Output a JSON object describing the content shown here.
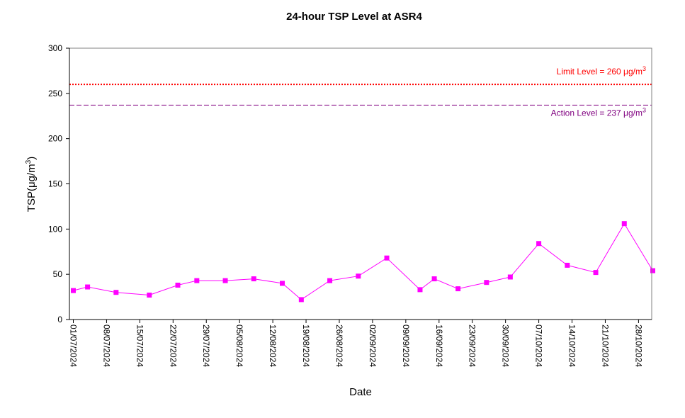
{
  "chart_data": {
    "type": "line",
    "title": "24-hour TSP Level at ASR4",
    "xlabel": "Date",
    "ylabel": {
      "prefix": "TSP(",
      "mu": "μ",
      "unit": "g/m",
      "sup": "3",
      "suffix": ")"
    },
    "ylim": [
      0,
      300
    ],
    "yticks": [
      "0",
      "50",
      "100",
      "150",
      "200",
      "250",
      "300"
    ],
    "xlim": [
      "2024-07-01",
      "2024-10-28"
    ],
    "xticks": [
      "01/07/2024",
      "08/07/2024",
      "15/07/2024",
      "22/07/2024",
      "29/07/2024",
      "05/08/2024",
      "12/08/2024",
      "19/08/2024",
      "26/08/2024",
      "02/09/2024",
      "09/09/2024",
      "16/09/2024",
      "23/09/2024",
      "30/09/2024",
      "07/10/2024",
      "14/10/2024",
      "21/10/2024",
      "28/10/2024"
    ],
    "grid": false,
    "series": [
      {
        "color": "#ff00ff",
        "marker": "square",
        "points": [
          {
            "x": "2024-07-01",
            "y": 32
          },
          {
            "x": "2024-07-04",
            "y": 36
          },
          {
            "x": "2024-07-10",
            "y": 30
          },
          {
            "x": "2024-07-17",
            "y": 27
          },
          {
            "x": "2024-07-23",
            "y": 38
          },
          {
            "x": "2024-07-27",
            "y": 43
          },
          {
            "x": "2024-08-02",
            "y": 43
          },
          {
            "x": "2024-08-08",
            "y": 45
          },
          {
            "x": "2024-08-14",
            "y": 40
          },
          {
            "x": "2024-08-18",
            "y": 22
          },
          {
            "x": "2024-08-24",
            "y": 43
          },
          {
            "x": "2024-08-30",
            "y": 48
          },
          {
            "x": "2024-09-05",
            "y": 68
          },
          {
            "x": "2024-09-12",
            "y": 33
          },
          {
            "x": "2024-09-15",
            "y": 45
          },
          {
            "x": "2024-09-20",
            "y": 34
          },
          {
            "x": "2024-09-26",
            "y": 41
          },
          {
            "x": "2024-10-01",
            "y": 47
          },
          {
            "x": "2024-10-07",
            "y": 84
          },
          {
            "x": "2024-10-13",
            "y": 60
          },
          {
            "x": "2024-10-19",
            "y": 52
          },
          {
            "x": "2024-10-25",
            "y": 106
          },
          {
            "x": "2024-10-31",
            "y": 54
          }
        ]
      }
    ],
    "reference_lines": [
      {
        "label": "Limit Level  = 260 μg/m",
        "sup": "3",
        "value": 260,
        "color": "#ff0000",
        "style": "dotted"
      },
      {
        "label": "Action Level  = 237 μg/m",
        "sup": "3",
        "value": 237,
        "color": "#800080",
        "style": "dashed"
      }
    ]
  }
}
